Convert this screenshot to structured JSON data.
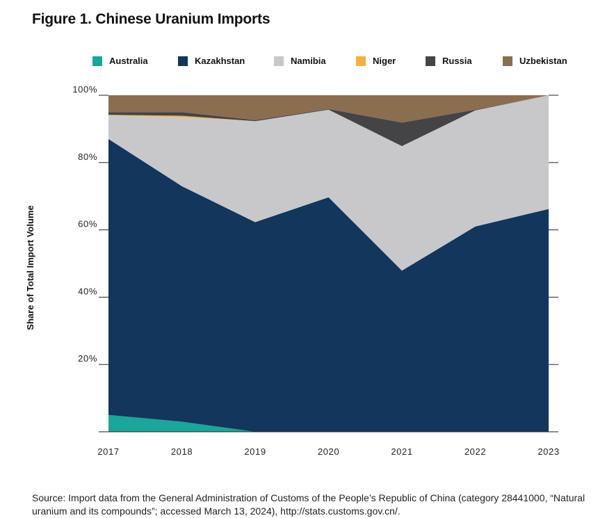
{
  "title": "Figure 1. Chinese Uranium Imports",
  "source": "Source: Import data from the General Administration of Customs of the People’s Republic of China (category 28441000, “Natural uranium and its compounds”; accessed March 13, 2024), http://stats.customs.gov.cn/.",
  "chart_data": {
    "type": "area",
    "stacked": true,
    "x": [
      "2017",
      "2018",
      "2019",
      "2020",
      "2021",
      "2022",
      "2023"
    ],
    "ylabel": "Share of Total Import Volume",
    "ylim": [
      0,
      100
    ],
    "yticks": [
      20,
      40,
      60,
      80,
      100
    ],
    "ytick_labels": [
      "20%",
      "40%",
      "60%",
      "80%",
      "100%"
    ],
    "legend_position": "top",
    "series": [
      {
        "name": "Australia",
        "color": "#1aa69a",
        "values": [
          5,
          3,
          0,
          0,
          0,
          0,
          0
        ]
      },
      {
        "name": "Kazakhstan",
        "color": "#12365c",
        "values": [
          82,
          70,
          62.3,
          69.7,
          47.9,
          61,
          66.2
        ]
      },
      {
        "name": "Namibia",
        "color": "#c8c8ca",
        "values": [
          7,
          20.5,
          30,
          26,
          37,
          34.5,
          33.8
        ]
      },
      {
        "name": "Niger",
        "color": "#f6b042",
        "values": [
          0.2,
          0.4,
          0,
          0,
          0,
          0,
          0
        ]
      },
      {
        "name": "Russia",
        "color": "#444446",
        "values": [
          0.8,
          1.1,
          0.3,
          0.2,
          7,
          0.2,
          0
        ]
      },
      {
        "name": "Uzbekistan",
        "color": "#8b6d50",
        "values": [
          5,
          5,
          7.4,
          4.1,
          8.1,
          4.3,
          0
        ]
      }
    ]
  }
}
